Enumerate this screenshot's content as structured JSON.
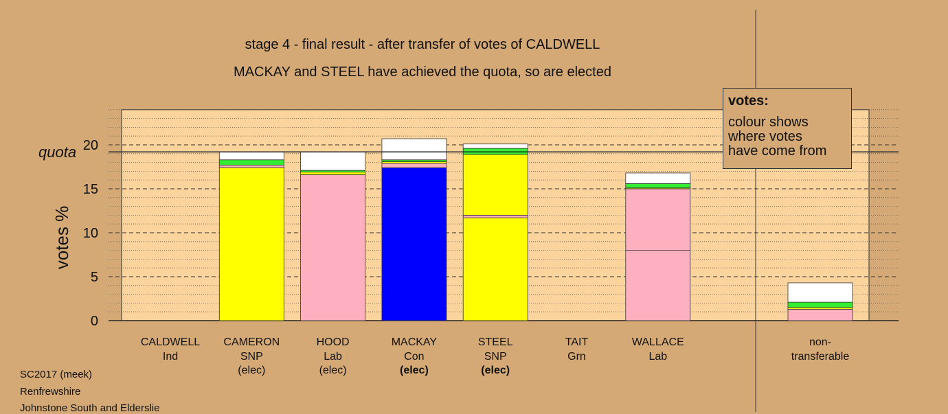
{
  "title": "stage 4 - final result - after transfer of votes of CALDWELL",
  "subtitle": "MACKAY and STEEL have achieved the quota, so are elected",
  "legend": {
    "title": "votes:",
    "lines": [
      "colour shows",
      "where votes",
      "have come from"
    ]
  },
  "footer": [
    "SC2017 (meek)",
    "Renfrewshire",
    "Johnstone South and Elderslie"
  ],
  "colors": {
    "background": "#d4a976",
    "plot_area": "#fbd39c",
    "SNP": "#ffff00",
    "Lab": "#ffb0c0",
    "Con": "#0000ff",
    "Grn": "#33ee33",
    "other": "#ffffff"
  },
  "chart_data": {
    "type": "bar",
    "stacked": true,
    "ylabel": "votes %",
    "ylim": [
      0,
      24
    ],
    "yticks": [
      0,
      5,
      10,
      15,
      20
    ],
    "quota": 19.2,
    "quota_label": "quota",
    "grid": true,
    "legend_position": "top-right",
    "categories": [
      {
        "name": "CALDWELL",
        "party": "Ind",
        "status": "",
        "status_bold": false,
        "segments": []
      },
      {
        "name": "CAMERON",
        "party": "SNP",
        "status": "(elec)",
        "status_bold": false,
        "segments": [
          {
            "from": "SNP",
            "value": 17.4
          },
          {
            "from": "Lab",
            "value": 0.3
          },
          {
            "from": "Grn",
            "value": 0.6
          },
          {
            "from": "other",
            "value": 0.9
          }
        ]
      },
      {
        "name": "HOOD",
        "party": "Lab",
        "status": "(elec)",
        "status_bold": false,
        "segments": [
          {
            "from": "Lab",
            "value": 16.6
          },
          {
            "from": "SNP",
            "value": 0.3
          },
          {
            "from": "Grn",
            "value": 0.2
          },
          {
            "from": "other",
            "value": 2.1
          }
        ]
      },
      {
        "name": "MACKAY",
        "party": "Con",
        "status": "(elec)",
        "status_bold": true,
        "segments": [
          {
            "from": "Con",
            "value": 17.4
          },
          {
            "from": "Lab",
            "value": 0.5
          },
          {
            "from": "SNP",
            "value": 0.2
          },
          {
            "from": "Grn",
            "value": 0.2
          },
          {
            "from": "other",
            "value": 2.4
          }
        ]
      },
      {
        "name": "STEEL",
        "party": "SNP",
        "status": "(elec)",
        "status_bold": true,
        "segments": [
          {
            "from": "SNP",
            "value": 11.7
          },
          {
            "from": "Lab",
            "value": 0.3
          },
          {
            "from": "SNP",
            "value": 6.9
          },
          {
            "from": "Grn",
            "value": 0.7
          },
          {
            "from": "other",
            "value": 0.5
          }
        ]
      },
      {
        "name": "TAIT",
        "party": "Grn",
        "status": "",
        "status_bold": false,
        "segments": []
      },
      {
        "name": "WALLACE",
        "party": "Lab",
        "status": "",
        "status_bold": false,
        "segments": [
          {
            "from": "Lab",
            "value": 8.0
          },
          {
            "from": "Lab",
            "value": 7.0
          },
          {
            "from": "SNP",
            "value": 0.1
          },
          {
            "from": "Grn",
            "value": 0.5
          },
          {
            "from": "other",
            "value": 1.2
          }
        ]
      }
    ],
    "non_transferable": {
      "label_lines": [
        "non-",
        "transferable"
      ],
      "segments": [
        {
          "from": "Lab",
          "value": 1.3
        },
        {
          "from": "SNP",
          "value": 0.2
        },
        {
          "from": "Grn",
          "value": 0.6
        },
        {
          "from": "other",
          "value": 2.2
        }
      ]
    }
  }
}
